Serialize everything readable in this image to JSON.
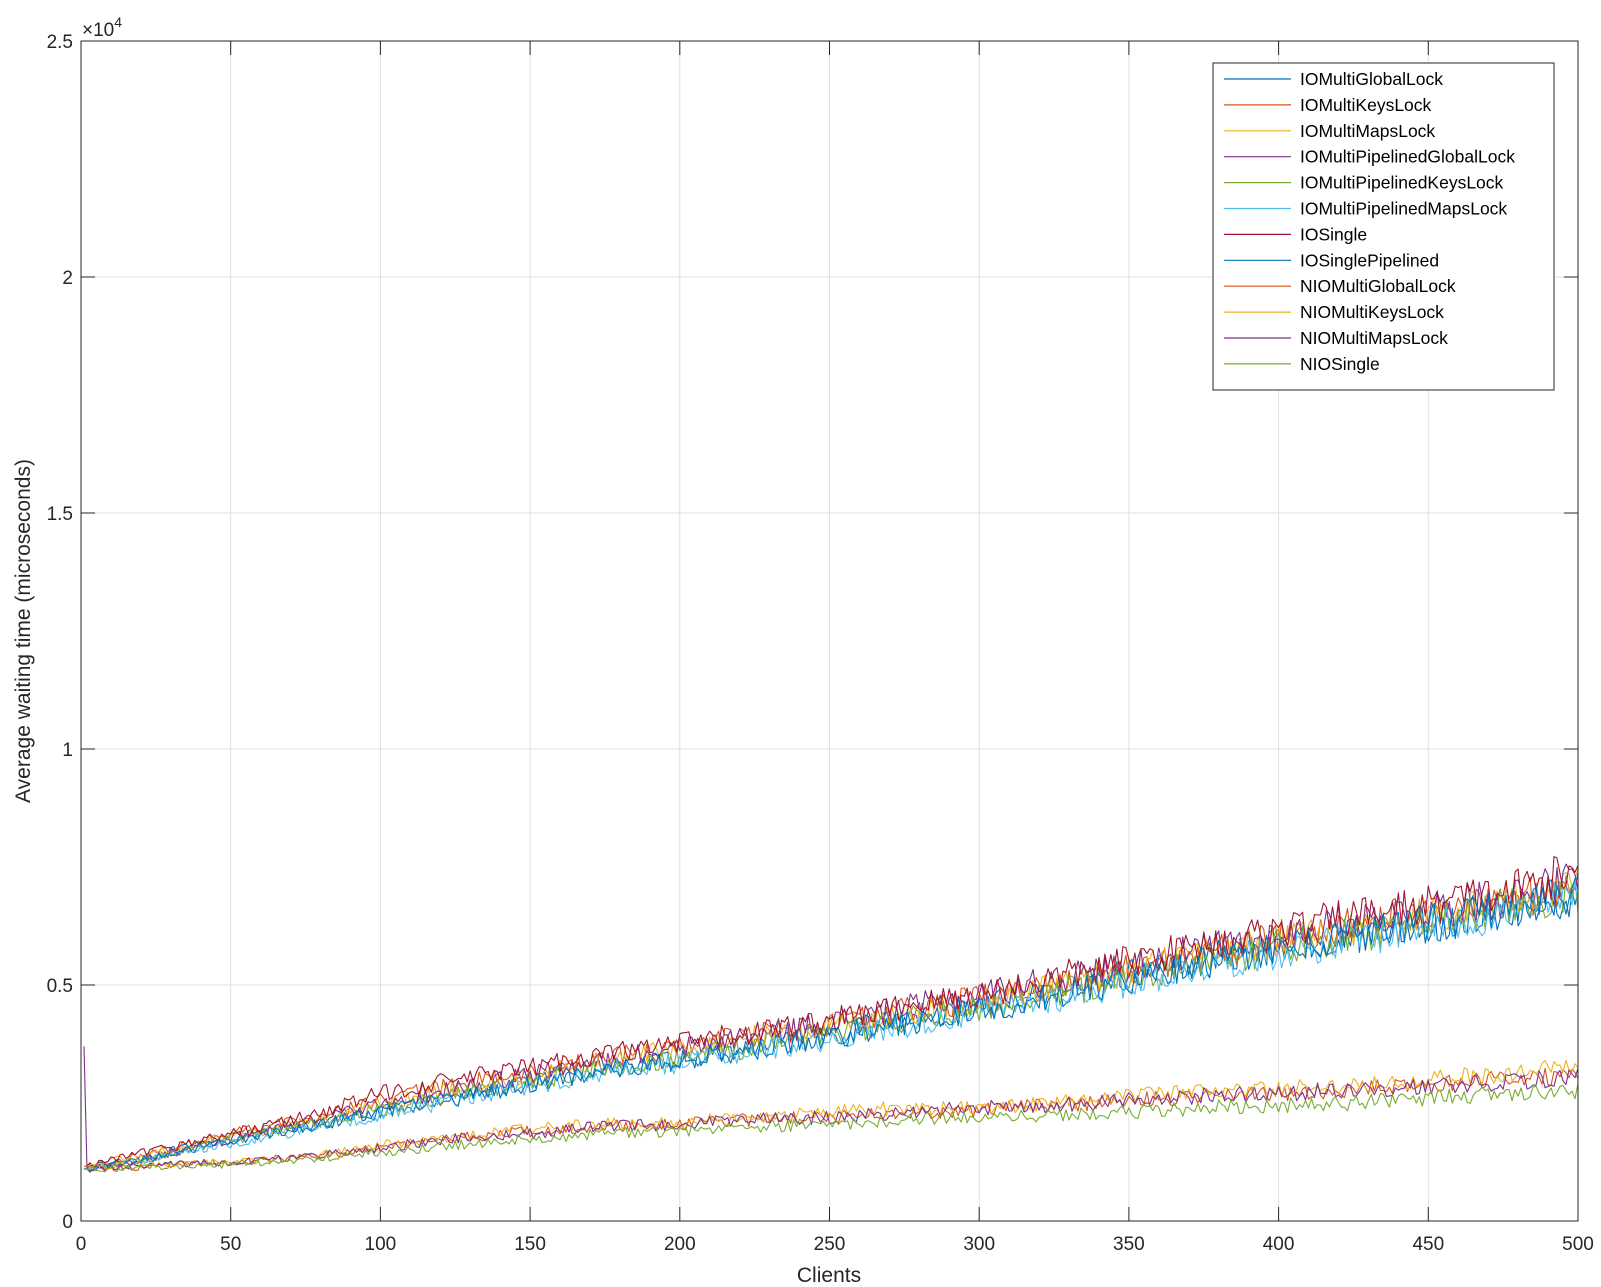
{
  "chart_data": {
    "type": "line",
    "title": "",
    "xlabel": "Clients",
    "ylabel": "Average waiting time (microseconds)",
    "xlim": [
      0,
      500
    ],
    "ylim": [
      0,
      25000
    ],
    "y_exponent_label": "×10",
    "y_exponent_power": "4",
    "xticks": [
      0,
      50,
      100,
      150,
      200,
      250,
      300,
      350,
      400,
      450,
      500
    ],
    "xtick_labels": [
      "0",
      "50",
      "100",
      "150",
      "200",
      "250",
      "300",
      "350",
      "400",
      "450",
      "500"
    ],
    "yticks": [
      0,
      5000,
      10000,
      15000,
      20000,
      25000
    ],
    "ytick_labels": [
      "0",
      "0.5",
      "1",
      "1.5",
      "2",
      "2.5"
    ],
    "grid": true,
    "legend_position": "top-right",
    "series": [
      {
        "name": "IOMultiGlobalLock",
        "color": "#0072BD",
        "x": [
          1,
          25,
          50,
          75,
          100,
          125,
          150,
          175,
          200,
          225,
          250,
          275,
          300,
          325,
          350,
          375,
          400,
          425,
          450,
          475,
          500
        ],
        "values": [
          1100,
          1400,
          1750,
          2000,
          2300,
          2650,
          2950,
          3250,
          3400,
          3650,
          3950,
          4300,
          4550,
          4900,
          5250,
          5550,
          5800,
          6050,
          6300,
          6600,
          6900
        ]
      },
      {
        "name": "IOMultiKeysLock",
        "color": "#D95319",
        "x": [
          1,
          25,
          50,
          75,
          100,
          125,
          150,
          175,
          200,
          225,
          250,
          275,
          300,
          325,
          350,
          375,
          400,
          425,
          450,
          475,
          500
        ],
        "values": [
          1150,
          1450,
          1850,
          2150,
          2550,
          2900,
          3150,
          3450,
          3700,
          3950,
          4150,
          4450,
          4700,
          5000,
          5350,
          5650,
          6000,
          6250,
          6550,
          6800,
          7100
        ]
      },
      {
        "name": "IOMultiMapsLock",
        "color": "#EDB120",
        "x": [
          1,
          25,
          50,
          75,
          100,
          125,
          150,
          175,
          200,
          225,
          250,
          275,
          300,
          325,
          350,
          375,
          400,
          425,
          450,
          475,
          500
        ],
        "values": [
          1150,
          1450,
          1800,
          2100,
          2450,
          2800,
          3100,
          3400,
          3650,
          3900,
          4150,
          4400,
          4650,
          5000,
          5300,
          5650,
          5950,
          6200,
          6500,
          6750,
          7200
        ]
      },
      {
        "name": "IOMultiPipelinedGlobalLock",
        "color": "#7E2F8E",
        "x": [
          1,
          25,
          50,
          75,
          100,
          125,
          150,
          175,
          200,
          225,
          250,
          275,
          300,
          325,
          350,
          375,
          400,
          425,
          450,
          475,
          500
        ],
        "values": [
          1100,
          1350,
          1750,
          2100,
          2450,
          2800,
          3100,
          3400,
          3650,
          3950,
          4200,
          4500,
          4800,
          5100,
          5400,
          5750,
          6050,
          6350,
          6600,
          6850,
          7200
        ]
      },
      {
        "name": "IOMultiPipelinedKeysLock",
        "color": "#77AC30",
        "x": [
          1,
          25,
          50,
          75,
          100,
          125,
          150,
          175,
          200,
          225,
          250,
          275,
          300,
          325,
          350,
          375,
          400,
          425,
          450,
          475,
          500
        ],
        "values": [
          1100,
          1350,
          1700,
          2000,
          2350,
          2650,
          2950,
          3250,
          3450,
          3700,
          3950,
          4250,
          4500,
          4800,
          5150,
          5450,
          5800,
          6050,
          6350,
          6600,
          6950
        ]
      },
      {
        "name": "IOMultiPipelinedMapsLock",
        "color": "#4DBEEE",
        "x": [
          1,
          25,
          50,
          75,
          100,
          125,
          150,
          175,
          200,
          225,
          250,
          275,
          300,
          325,
          350,
          375,
          400,
          425,
          450,
          475,
          500
        ],
        "values": [
          1100,
          1350,
          1650,
          1950,
          2250,
          2550,
          2850,
          3150,
          3350,
          3600,
          3850,
          4150,
          4400,
          4700,
          5050,
          5400,
          5700,
          5950,
          6250,
          6500,
          6850
        ]
      },
      {
        "name": "IOSingle",
        "color": "#A2142F",
        "x": [
          1,
          25,
          50,
          75,
          100,
          125,
          150,
          175,
          200,
          225,
          250,
          275,
          300,
          325,
          350,
          375,
          400,
          425,
          450,
          475,
          500
        ],
        "values": [
          1150,
          1500,
          1850,
          2200,
          2700,
          3000,
          3250,
          3550,
          3750,
          4000,
          4250,
          4550,
          4800,
          5150,
          5500,
          5850,
          6150,
          6450,
          6700,
          6950,
          7400
        ]
      },
      {
        "name": "IOSinglePipelined",
        "color": "#0072BD",
        "x": [
          1,
          25,
          50,
          75,
          100,
          125,
          150,
          175,
          200,
          225,
          250,
          275,
          300,
          325,
          350,
          375,
          400,
          425,
          450,
          475,
          500
        ],
        "values": [
          1100,
          1350,
          1700,
          2000,
          2300,
          2600,
          2900,
          3200,
          3400,
          3650,
          3900,
          4200,
          4450,
          4750,
          5100,
          5450,
          5750,
          6050,
          6300,
          6550,
          6850
        ]
      },
      {
        "name": "NIOMultiGlobalLock",
        "color": "#D95319",
        "x": [
          1,
          25,
          50,
          75,
          100,
          125,
          150,
          175,
          200,
          225,
          250,
          275,
          300,
          325,
          350,
          375,
          400,
          425,
          450,
          475,
          500
        ],
        "values": [
          1100,
          1150,
          1250,
          1350,
          1550,
          1750,
          1900,
          2000,
          2050,
          2150,
          2200,
          2300,
          2350,
          2450,
          2550,
          2650,
          2700,
          2800,
          2900,
          3000,
          3100
        ]
      },
      {
        "name": "NIOMultiKeysLock",
        "color": "#EDB120",
        "x": [
          1,
          25,
          50,
          75,
          100,
          125,
          150,
          175,
          200,
          225,
          250,
          275,
          300,
          325,
          350,
          375,
          400,
          425,
          450,
          475,
          500
        ],
        "values": [
          1150,
          1200,
          1250,
          1350,
          1600,
          1800,
          1950,
          2050,
          2100,
          2200,
          2300,
          2400,
          2400,
          2500,
          2650,
          2750,
          2800,
          2900,
          3000,
          3100,
          3300
        ]
      },
      {
        "name": "NIOMultiMapsLock",
        "color": "#7E2F8E",
        "x": [
          1,
          2,
          25,
          50,
          75,
          100,
          125,
          150,
          175,
          200,
          225,
          250,
          275,
          300,
          325,
          350,
          375,
          400,
          425,
          450,
          475,
          500
        ],
        "values": [
          3700,
          1100,
          1200,
          1250,
          1350,
          1550,
          1750,
          1850,
          2000,
          2050,
          2150,
          2200,
          2300,
          2400,
          2450,
          2550,
          2650,
          2700,
          2800,
          2850,
          2950,
          3050
        ]
      },
      {
        "name": "NIOSingle",
        "color": "#77AC30",
        "x": [
          1,
          25,
          50,
          75,
          100,
          125,
          150,
          175,
          200,
          225,
          250,
          275,
          300,
          325,
          350,
          375,
          400,
          425,
          450,
          475,
          500
        ],
        "values": [
          1100,
          1150,
          1200,
          1300,
          1450,
          1600,
          1750,
          1850,
          1900,
          2000,
          2050,
          2150,
          2200,
          2250,
          2300,
          2400,
          2450,
          2500,
          2600,
          2700,
          2750
        ]
      }
    ]
  }
}
